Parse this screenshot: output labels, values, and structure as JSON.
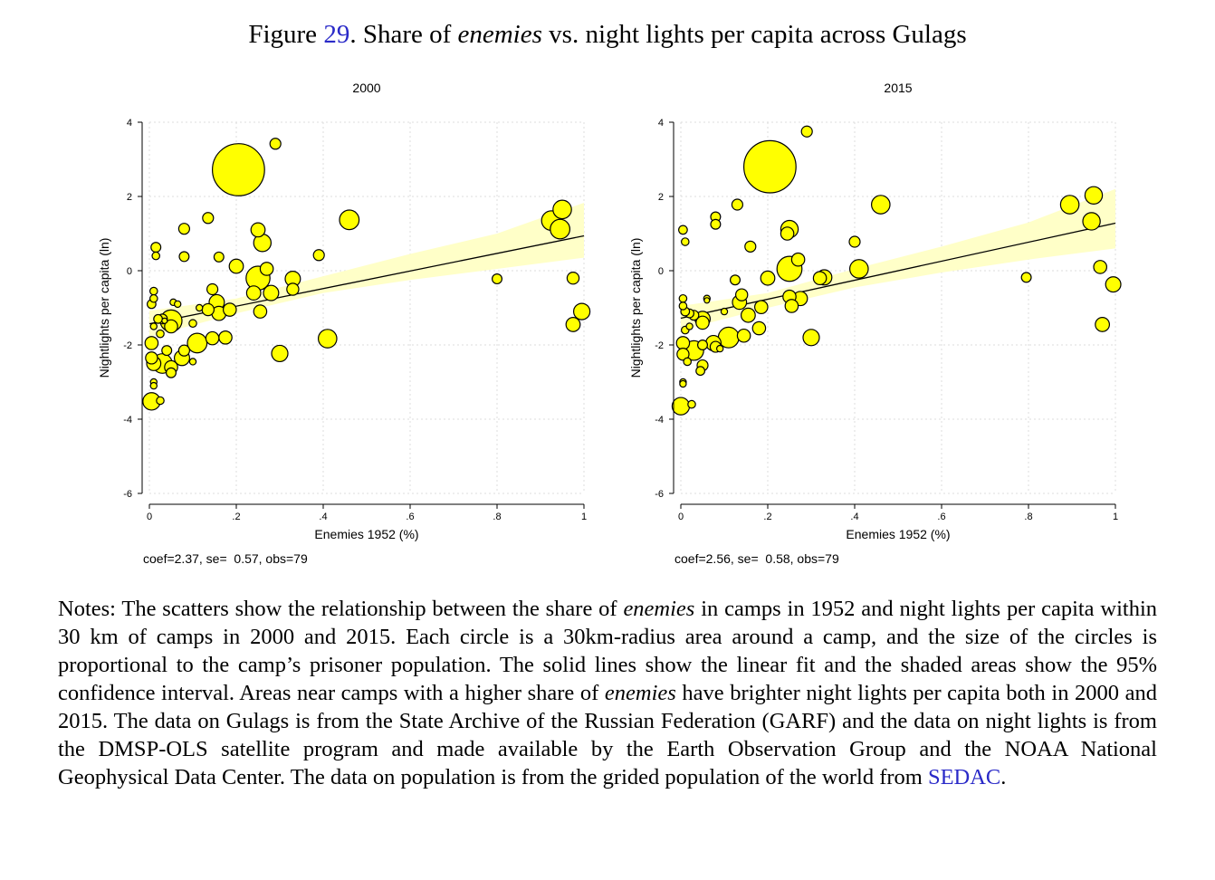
{
  "figure": {
    "label": "Figure",
    "number": "29",
    "title_pre": ". Share of ",
    "title_em": "enemies",
    "title_post": " vs. night lights per capita across Gulags"
  },
  "notes": {
    "p1": "Notes: The scatters show the relationship between the share of ",
    "em1": "enemies",
    "p2": " in camps in 1952 and night lights per capita within 30 km of camps in 2000 and 2015. Each circle is a 30km-radius area around a camp, and the size of the circles is proportional to the camp’s prisoner population. The solid lines show the linear fit and the shaded areas show the 95% confidence interval. Areas near camps with a higher share of ",
    "em2": "enemies",
    "p3": " have brighter night lights per capita both in 2000 and 2015. The data on Gulags is from the State Archive of the Russian Federation (GARF) and the data on night lights is from the DMSP-OLS satellite program and made available by the Earth Observation Group and the NOAA National Geophysical Data Center. The data on population is from the grided population of the world from ",
    "link": "SEDAC",
    "p4": "."
  },
  "colors": {
    "marker_fill": "#ffff00",
    "marker_edge": "#000000",
    "ci_band": "#ffffc8",
    "fit_line": "#000000",
    "link": "#2a2ac8"
  },
  "chart_data": [
    {
      "type": "scatter",
      "title": "2000",
      "xlabel": "Enemies 1952 (%)",
      "ylabel": "Nightlights per capita (ln)",
      "xlim": [
        0,
        1
      ],
      "ylim": [
        -6,
        4
      ],
      "xticks": [
        0,
        0.2,
        0.4,
        0.6,
        0.8,
        1
      ],
      "xtick_labels": [
        "0",
        ".2",
        ".4",
        ".6",
        ".8",
        "1"
      ],
      "yticks": [
        -6,
        -4,
        -2,
        0,
        2,
        4
      ],
      "grid": true,
      "stats_text": "coef=2.37, se=  0.57, obs=79",
      "fit": {
        "x": [
          0,
          1
        ],
        "y": [
          -1.43,
          0.94
        ]
      },
      "ci": {
        "x": [
          0,
          0.2,
          0.4,
          0.6,
          0.8,
          1
        ],
        "lower": [
          -1.78,
          -1.15,
          -0.6,
          -0.25,
          0.05,
          0.35
        ],
        "upper": [
          -1.08,
          -0.75,
          -0.15,
          0.45,
          1.0,
          1.83
        ]
      },
      "points": [
        {
          "x": 0.205,
          "y": 2.72,
          "s": 4.8
        },
        {
          "x": 0.29,
          "y": 3.42,
          "s": 1.0
        },
        {
          "x": 0.46,
          "y": 1.37,
          "s": 1.8
        },
        {
          "x": 0.925,
          "y": 1.35,
          "s": 1.8
        },
        {
          "x": 0.95,
          "y": 1.65,
          "s": 1.7
        },
        {
          "x": 0.945,
          "y": 1.12,
          "s": 1.8
        },
        {
          "x": 0.975,
          "y": -0.2,
          "s": 1.1
        },
        {
          "x": 0.8,
          "y": -0.22,
          "s": 0.9
        },
        {
          "x": 0.975,
          "y": -1.45,
          "s": 1.3
        },
        {
          "x": 0.995,
          "y": -1.1,
          "s": 1.5
        },
        {
          "x": 0.41,
          "y": -1.83,
          "s": 1.7
        },
        {
          "x": 0.39,
          "y": 0.42,
          "s": 1.0
        },
        {
          "x": 0.135,
          "y": 1.42,
          "s": 1.0
        },
        {
          "x": 0.08,
          "y": 1.13,
          "s": 1.0
        },
        {
          "x": 0.08,
          "y": 0.38,
          "s": 0.9
        },
        {
          "x": 0.25,
          "y": 1.1,
          "s": 1.3
        },
        {
          "x": 0.26,
          "y": 0.75,
          "s": 1.6
        },
        {
          "x": 0.2,
          "y": 0.12,
          "s": 1.3
        },
        {
          "x": 0.25,
          "y": -0.2,
          "s": 2.2
        },
        {
          "x": 0.27,
          "y": 0.05,
          "s": 1.2
        },
        {
          "x": 0.24,
          "y": -0.6,
          "s": 1.3
        },
        {
          "x": 0.28,
          "y": -0.6,
          "s": 1.4
        },
        {
          "x": 0.33,
          "y": -0.22,
          "s": 1.4
        },
        {
          "x": 0.33,
          "y": -0.5,
          "s": 1.1
        },
        {
          "x": 0.255,
          "y": -1.1,
          "s": 1.2
        },
        {
          "x": 0.3,
          "y": -2.23,
          "s": 1.5
        },
        {
          "x": 0.16,
          "y": 0.37,
          "s": 0.9
        },
        {
          "x": 0.015,
          "y": 0.63,
          "s": 0.9
        },
        {
          "x": 0.015,
          "y": 0.4,
          "s": 0.7
        },
        {
          "x": 0.145,
          "y": -0.5,
          "s": 1.0
        },
        {
          "x": 0.155,
          "y": -0.85,
          "s": 1.4
        },
        {
          "x": 0.135,
          "y": -1.05,
          "s": 1.1
        },
        {
          "x": 0.16,
          "y": -1.15,
          "s": 1.3
        },
        {
          "x": 0.185,
          "y": -1.05,
          "s": 1.2
        },
        {
          "x": 0.175,
          "y": -1.8,
          "s": 1.2
        },
        {
          "x": 0.145,
          "y": -1.82,
          "s": 1.2
        },
        {
          "x": 0.1,
          "y": -1.42,
          "s": 0.7
        },
        {
          "x": 0.11,
          "y": -1.95,
          "s": 1.8
        },
        {
          "x": 0.055,
          "y": -0.85,
          "s": 0.6
        },
        {
          "x": 0.05,
          "y": -1.35,
          "s": 2.0
        },
        {
          "x": 0.05,
          "y": -1.5,
          "s": 1.2
        },
        {
          "x": 0.02,
          "y": -1.3,
          "s": 0.8
        },
        {
          "x": 0.01,
          "y": -0.55,
          "s": 0.7
        },
        {
          "x": 0.01,
          "y": -0.75,
          "s": 0.7
        },
        {
          "x": 0.005,
          "y": -0.9,
          "s": 0.8
        },
        {
          "x": 0.03,
          "y": -1.3,
          "s": 0.9
        },
        {
          "x": 0.035,
          "y": -1.35,
          "s": 0.5
        },
        {
          "x": 0.01,
          "y": -1.5,
          "s": 0.6
        },
        {
          "x": 0.005,
          "y": -1.95,
          "s": 1.2
        },
        {
          "x": 0.005,
          "y": -2.35,
          "s": 1.1
        },
        {
          "x": 0.01,
          "y": -2.5,
          "s": 1.3
        },
        {
          "x": 0.03,
          "y": -2.5,
          "s": 1.8
        },
        {
          "x": 0.05,
          "y": -2.6,
          "s": 1.2
        },
        {
          "x": 0.05,
          "y": -2.75,
          "s": 0.9
        },
        {
          "x": 0.075,
          "y": -2.35,
          "s": 1.4
        },
        {
          "x": 0.08,
          "y": -2.15,
          "s": 1.0
        },
        {
          "x": 0.04,
          "y": -2.15,
          "s": 0.9
        },
        {
          "x": 0.1,
          "y": -2.45,
          "s": 0.6
        },
        {
          "x": 0.01,
          "y": -3.0,
          "s": 0.6
        },
        {
          "x": 0.01,
          "y": -3.1,
          "s": 0.6
        },
        {
          "x": 0.025,
          "y": -3.5,
          "s": 0.7
        },
        {
          "x": 0.005,
          "y": -3.52,
          "s": 1.6
        },
        {
          "x": 0.115,
          "y": -1.0,
          "s": 0.6
        },
        {
          "x": 0.065,
          "y": -0.9,
          "s": 0.6
        },
        {
          "x": 0.025,
          "y": -1.7,
          "s": 0.7
        }
      ]
    },
    {
      "type": "scatter",
      "title": "2015",
      "xlabel": "Enemies 1952 (%)",
      "ylabel": "Nightlights per capita (ln)",
      "xlim": [
        0,
        1
      ],
      "ylim": [
        -6,
        4
      ],
      "xticks": [
        0,
        0.2,
        0.4,
        0.6,
        0.8,
        1
      ],
      "xtick_labels": [
        "0",
        ".2",
        ".4",
        ".6",
        ".8",
        "1"
      ],
      "yticks": [
        -6,
        -4,
        -2,
        0,
        2,
        4
      ],
      "grid": true,
      "stats_text": "coef=2.56, se=  0.58, obs=79",
      "fit": {
        "x": [
          0,
          1
        ],
        "y": [
          -1.28,
          1.28
        ]
      },
      "ci": {
        "x": [
          0,
          0.2,
          0.4,
          0.6,
          0.8,
          1
        ],
        "lower": [
          -1.6,
          -1.0,
          -0.45,
          -0.05,
          0.3,
          0.6
        ],
        "upper": [
          -0.95,
          -0.6,
          0.05,
          0.65,
          1.3,
          2.2
        ]
      },
      "points": [
        {
          "x": 0.205,
          "y": 2.8,
          "s": 4.8
        },
        {
          "x": 0.29,
          "y": 3.75,
          "s": 1.0
        },
        {
          "x": 0.13,
          "y": 1.78,
          "s": 1.0
        },
        {
          "x": 0.46,
          "y": 1.78,
          "s": 1.7
        },
        {
          "x": 0.895,
          "y": 1.78,
          "s": 1.7
        },
        {
          "x": 0.95,
          "y": 2.03,
          "s": 1.6
        },
        {
          "x": 0.945,
          "y": 1.33,
          "s": 1.6
        },
        {
          "x": 0.965,
          "y": 0.1,
          "s": 1.2
        },
        {
          "x": 0.795,
          "y": -0.18,
          "s": 0.9
        },
        {
          "x": 0.97,
          "y": -1.45,
          "s": 1.3
        },
        {
          "x": 0.995,
          "y": -0.37,
          "s": 1.4
        },
        {
          "x": 0.4,
          "y": 0.78,
          "s": 1.0
        },
        {
          "x": 0.41,
          "y": 0.05,
          "s": 1.7
        },
        {
          "x": 0.08,
          "y": 1.45,
          "s": 0.9
        },
        {
          "x": 0.08,
          "y": 1.25,
          "s": 0.9
        },
        {
          "x": 0.005,
          "y": 1.1,
          "s": 0.8
        },
        {
          "x": 0.01,
          "y": 0.78,
          "s": 0.7
        },
        {
          "x": 0.16,
          "y": 0.65,
          "s": 1.0
        },
        {
          "x": 0.25,
          "y": 1.12,
          "s": 1.6
        },
        {
          "x": 0.245,
          "y": 1.0,
          "s": 1.2
        },
        {
          "x": 0.27,
          "y": 0.3,
          "s": 1.2
        },
        {
          "x": 0.25,
          "y": 0.05,
          "s": 2.3
        },
        {
          "x": 0.2,
          "y": -0.2,
          "s": 1.3
        },
        {
          "x": 0.33,
          "y": -0.18,
          "s": 1.4
        },
        {
          "x": 0.32,
          "y": -0.2,
          "s": 1.2
        },
        {
          "x": 0.25,
          "y": -0.7,
          "s": 1.2
        },
        {
          "x": 0.275,
          "y": -0.75,
          "s": 1.3
        },
        {
          "x": 0.255,
          "y": -0.95,
          "s": 1.2
        },
        {
          "x": 0.3,
          "y": -1.8,
          "s": 1.5
        },
        {
          "x": 0.125,
          "y": -0.25,
          "s": 0.9
        },
        {
          "x": 0.14,
          "y": -0.65,
          "s": 1.1
        },
        {
          "x": 0.135,
          "y": -0.85,
          "s": 1.3
        },
        {
          "x": 0.155,
          "y": -1.2,
          "s": 1.3
        },
        {
          "x": 0.185,
          "y": -0.98,
          "s": 1.2
        },
        {
          "x": 0.18,
          "y": -1.55,
          "s": 1.2
        },
        {
          "x": 0.145,
          "y": -1.75,
          "s": 1.2
        },
        {
          "x": 0.11,
          "y": -1.8,
          "s": 1.9
        },
        {
          "x": 0.1,
          "y": -1.1,
          "s": 0.6
        },
        {
          "x": 0.06,
          "y": -0.75,
          "s": 0.6
        },
        {
          "x": 0.05,
          "y": -1.3,
          "s": 1.4
        },
        {
          "x": 0.05,
          "y": -1.4,
          "s": 1.2
        },
        {
          "x": 0.02,
          "y": -1.15,
          "s": 0.8
        },
        {
          "x": 0.005,
          "y": -0.75,
          "s": 0.7
        },
        {
          "x": 0.005,
          "y": -0.95,
          "s": 0.7
        },
        {
          "x": 0.01,
          "y": -1.1,
          "s": 0.8
        },
        {
          "x": 0.03,
          "y": -1.2,
          "s": 0.9
        },
        {
          "x": 0.01,
          "y": -1.6,
          "s": 0.7
        },
        {
          "x": 0.005,
          "y": -1.95,
          "s": 1.2
        },
        {
          "x": 0.005,
          "y": -2.25,
          "s": 1.1
        },
        {
          "x": 0.015,
          "y": -2.45,
          "s": 0.7
        },
        {
          "x": 0.03,
          "y": -2.15,
          "s": 1.8
        },
        {
          "x": 0.05,
          "y": -2.55,
          "s": 1.0
        },
        {
          "x": 0.045,
          "y": -2.7,
          "s": 0.8
        },
        {
          "x": 0.075,
          "y": -1.95,
          "s": 1.4
        },
        {
          "x": 0.08,
          "y": -2.05,
          "s": 1.0
        },
        {
          "x": 0.05,
          "y": -2.0,
          "s": 0.9
        },
        {
          "x": 0.005,
          "y": -3.0,
          "s": 0.6
        },
        {
          "x": 0.005,
          "y": -3.05,
          "s": 0.6
        },
        {
          "x": 0.025,
          "y": -3.6,
          "s": 0.7
        },
        {
          "x": 0.0,
          "y": -3.65,
          "s": 1.6
        },
        {
          "x": 0.06,
          "y": -0.8,
          "s": 0.5
        },
        {
          "x": 0.02,
          "y": -1.5,
          "s": 0.6
        },
        {
          "x": 0.09,
          "y": -2.1,
          "s": 0.6
        }
      ]
    }
  ]
}
